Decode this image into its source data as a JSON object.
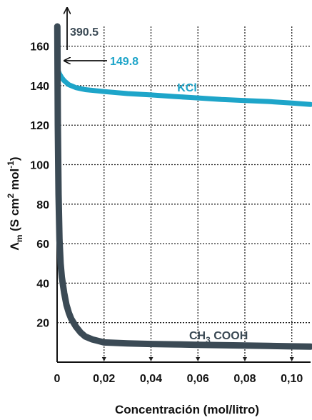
{
  "chart_data": {
    "type": "line",
    "xlabel": "Concentración (mol/litro)",
    "ylabel": {
      "main": "Λ",
      "sub": "m",
      "units_open": " (S cm",
      "cm_exp": "2",
      "units_mol": " mol",
      "mol_exp": "-1",
      "units_close": ")"
    },
    "xlim": [
      0,
      0.108
    ],
    "ylim": [
      0,
      170
    ],
    "x_ticks": [
      {
        "value": 0,
        "label": "0"
      },
      {
        "value": 0.02,
        "label": "0,02"
      },
      {
        "value": 0.04,
        "label": "0,04"
      },
      {
        "value": 0.06,
        "label": "0,06"
      },
      {
        "value": 0.08,
        "label": "0,08"
      },
      {
        "value": 0.1,
        "label": "0,10"
      }
    ],
    "y_ticks": [
      {
        "value": 20,
        "label": "20"
      },
      {
        "value": 40,
        "label": "40"
      },
      {
        "value": 60,
        "label": "60"
      },
      {
        "value": 80,
        "label": "80"
      },
      {
        "value": 100,
        "label": "100"
      },
      {
        "value": 120,
        "label": "120"
      },
      {
        "value": 140,
        "label": "140"
      },
      {
        "value": 160,
        "label": "160"
      }
    ],
    "grid": true,
    "series": [
      {
        "name": "KCl",
        "label": "KCl",
        "color": "#1ea5c9",
        "x": [
          0,
          0.0005,
          0.001,
          0.002,
          0.003,
          0.005,
          0.008,
          0.012,
          0.02,
          0.03,
          0.04,
          0.05,
          0.06,
          0.07,
          0.08,
          0.09,
          0.1,
          0.108
        ],
        "y": [
          149.8,
          147.5,
          146,
          144,
          142.5,
          140.5,
          139,
          138,
          137,
          136,
          135.3,
          134.5,
          133.8,
          133,
          132.5,
          132,
          131.2,
          130.5
        ]
      },
      {
        "name": "CH3 COOH",
        "label_main": "CH",
        "label_sub": "3",
        "label_rest": " COOH",
        "color": "#3b4a55",
        "x": [
          0.0001,
          0.0003,
          0.0006,
          0.001,
          0.0015,
          0.002,
          0.003,
          0.004,
          0.005,
          0.006,
          0.008,
          0.01,
          0.012,
          0.015,
          0.02,
          0.03,
          0.04,
          0.05,
          0.06,
          0.07,
          0.08,
          0.09,
          0.1,
          0.108
        ],
        "y": [
          170,
          120,
          85,
          62,
          50,
          43,
          35,
          29,
          25,
          22,
          18,
          15,
          13,
          11.5,
          10,
          9.5,
          9.2,
          9,
          8.8,
          8.6,
          8.4,
          8.2,
          8,
          7.9
        ]
      }
    ],
    "annotations": [
      {
        "text": "390.5",
        "series": "CH3 COOH",
        "color": "#3b4a55"
      },
      {
        "text": "149.8",
        "series": "KCl",
        "color": "#1ea5c9"
      }
    ]
  }
}
